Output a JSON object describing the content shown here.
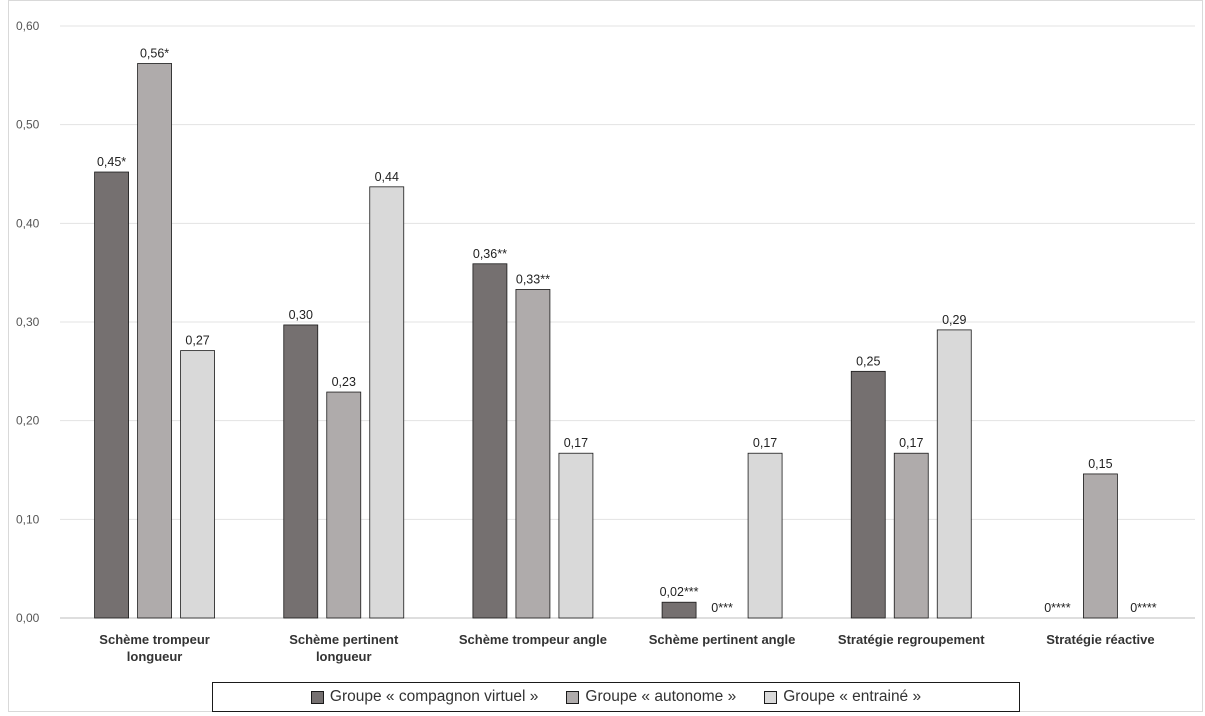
{
  "chart_data": {
    "type": "bar",
    "categories": [
      [
        "Schème trompeur",
        "longueur"
      ],
      [
        "Schème pertinent",
        "longueur"
      ],
      [
        "Schème trompeur angle"
      ],
      [
        "Schème pertinent angle"
      ],
      [
        "Stratégie regroupement"
      ],
      [
        "Stratégie réactive"
      ]
    ],
    "series": [
      {
        "name": "Groupe « compagnon virtuel »",
        "color": "#757070",
        "values": [
          0.452,
          0.297,
          0.359,
          0.016,
          0.25,
          0
        ],
        "labels": [
          "0,45*",
          "0,30",
          "0,36**",
          "0,02***",
          "0,25",
          "0****"
        ]
      },
      {
        "name": "Groupe « autonome »",
        "color": "#afabab",
        "values": [
          0.562,
          0.229,
          0.333,
          0,
          0.167,
          0.146
        ],
        "labels": [
          "0,56*",
          "0,23",
          "0,33**",
          "0***",
          "0,17",
          "0,15"
        ]
      },
      {
        "name": "Groupe « entrainé »",
        "color": "#d9d9d9",
        "values": [
          0.271,
          0.437,
          0.167,
          0.167,
          0.292,
          0
        ],
        "labels": [
          "0,27",
          "0,44",
          "0,17",
          "0,17",
          "0,29",
          "0****"
        ]
      }
    ],
    "yticks": [
      "0,00",
      "0,10",
      "0,20",
      "0,30",
      "0,40",
      "0,50",
      "0,60"
    ],
    "ylim": [
      0,
      0.6
    ],
    "grid": true,
    "legend_position": "bottom",
    "title": "",
    "xlabel": "",
    "ylabel": ""
  }
}
